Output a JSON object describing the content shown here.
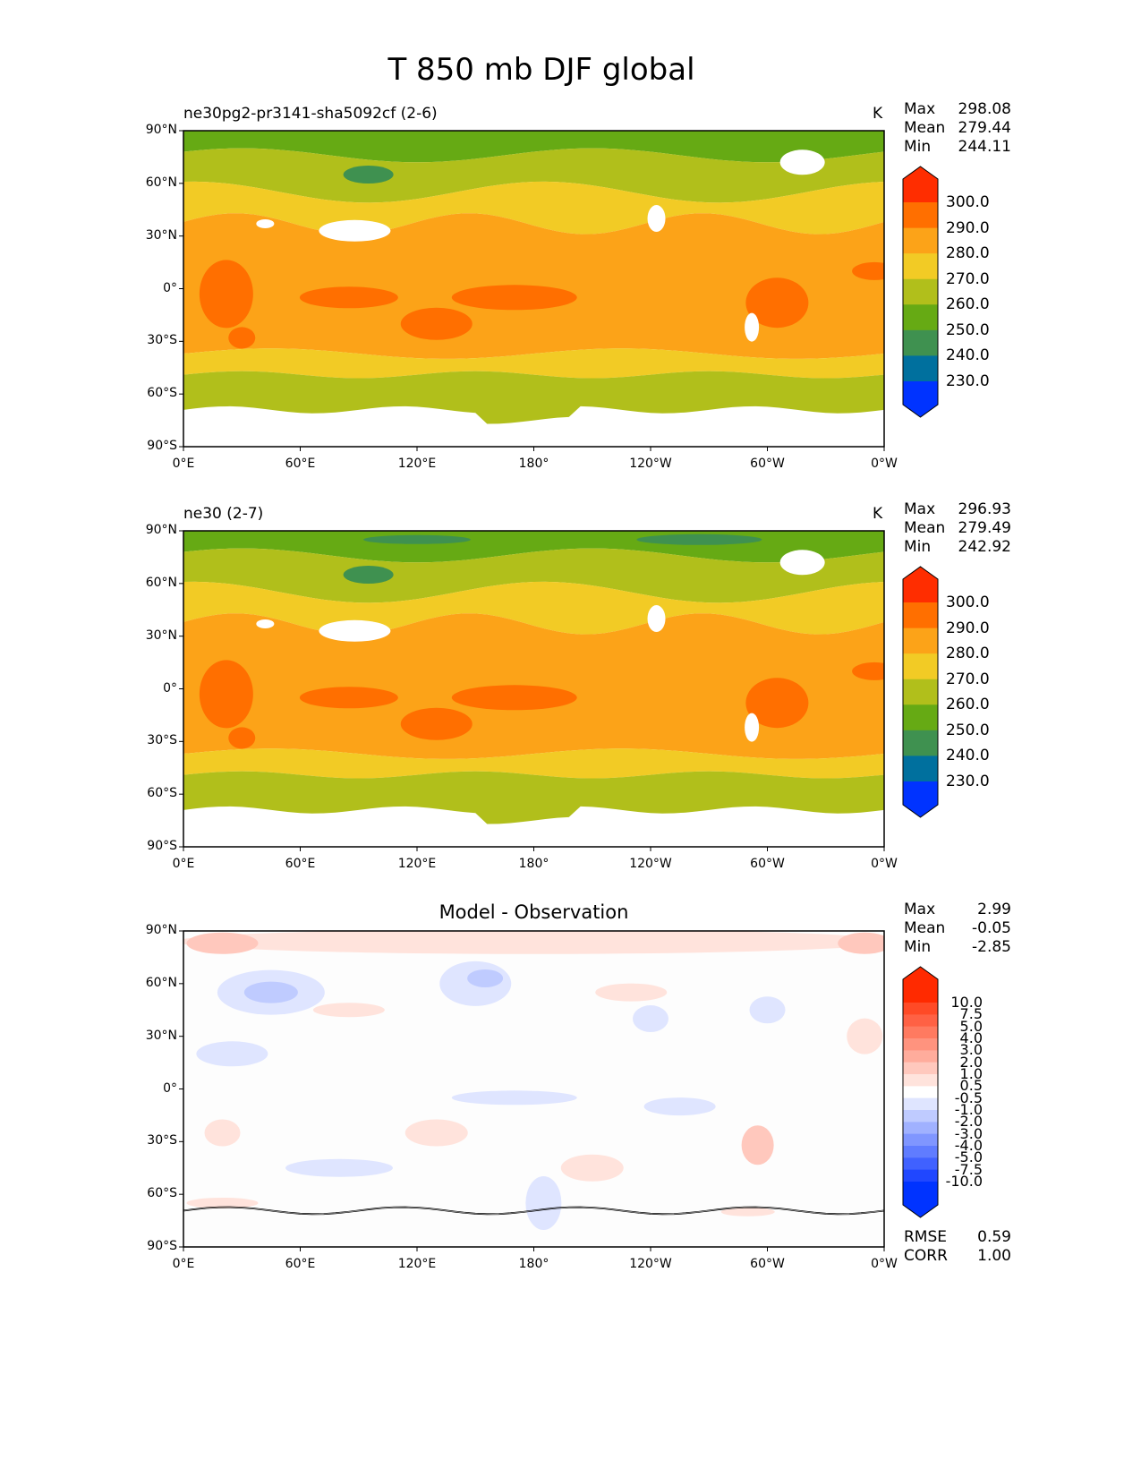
{
  "title": "T 850 mb DJF global",
  "chart_data": [
    {
      "type": "heatmap",
      "title": "ne30pg2-pr3141-sha5092cf (2-6)",
      "units": "K",
      "stats": {
        "max_label": "Max",
        "max": "298.08",
        "mean_label": "Mean",
        "mean": "279.44",
        "min_label": "Min",
        "min": "244.11"
      },
      "colorbar": {
        "levels": [
          "300.0",
          "290.0",
          "280.0",
          "270.0",
          "260.0",
          "250.0",
          "240.0",
          "230.0"
        ],
        "colors": [
          "#ff2d00",
          "#ff6f00",
          "#fca318",
          "#f2cb25",
          "#b1bf1b",
          "#66aa14",
          "#3f9150",
          "#00709e",
          "#0033ff"
        ]
      },
      "xticks": [
        "0°E",
        "60°E",
        "120°E",
        "180°",
        "120°W",
        "60°W",
        "0°W"
      ],
      "yticks": [
        "90°N",
        "60°N",
        "30°N",
        "0°",
        "30°S",
        "60°S",
        "90°S"
      ],
      "xlim": [
        0,
        360
      ],
      "ylim": [
        -90,
        90
      ]
    },
    {
      "type": "heatmap",
      "title": "ne30 (2-7)",
      "units": "K",
      "stats": {
        "max_label": "Max",
        "max": "296.93",
        "mean_label": "Mean",
        "mean": "279.49",
        "min_label": "Min",
        "min": "242.92"
      },
      "colorbar": {
        "levels": [
          "300.0",
          "290.0",
          "280.0",
          "270.0",
          "260.0",
          "250.0",
          "240.0",
          "230.0"
        ],
        "colors": [
          "#ff2d00",
          "#ff6f00",
          "#fca318",
          "#f2cb25",
          "#b1bf1b",
          "#66aa14",
          "#3f9150",
          "#00709e",
          "#0033ff"
        ]
      },
      "xticks": [
        "0°E",
        "60°E",
        "120°E",
        "180°",
        "120°W",
        "60°W",
        "0°W"
      ],
      "yticks": [
        "90°N",
        "60°N",
        "30°N",
        "0°",
        "30°S",
        "60°S",
        "90°S"
      ],
      "xlim": [
        0,
        360
      ],
      "ylim": [
        -90,
        90
      ]
    },
    {
      "type": "heatmap",
      "title": "Model - Observation",
      "units": "",
      "stats": {
        "max_label": "Max",
        "max": "2.99",
        "mean_label": "Mean",
        "mean": "-0.05",
        "min_label": "Min",
        "min": "-2.85",
        "rmse_label": "RMSE",
        "rmse": "0.59",
        "corr_label": "CORR",
        "corr": "1.00"
      },
      "colorbar": {
        "levels": [
          "10.0",
          "7.5",
          "5.0",
          "4.0",
          "3.0",
          "2.0",
          "1.0",
          "0.5",
          "-0.5",
          "-1.0",
          "-2.0",
          "-3.0",
          "-4.0",
          "-5.0",
          "-7.5",
          "-10.0"
        ],
        "colors": [
          "#ff2a00",
          "#ff4a26",
          "#ff6144",
          "#ff7a60",
          "#ff937e",
          "#ffac9c",
          "#ffc8bd",
          "#ffe3dc",
          "#ffffff",
          "#dfe5ff",
          "#bfcbff",
          "#a0b1ff",
          "#8096ff",
          "#607cff",
          "#4061ff",
          "#2047ff",
          "#0033ff"
        ]
      },
      "xticks": [
        "0°E",
        "60°E",
        "120°E",
        "180°",
        "120°W",
        "60°W",
        "0°W"
      ],
      "yticks": [
        "90°N",
        "60°N",
        "30°N",
        "0°",
        "30°S",
        "60°S",
        "90°S"
      ],
      "xlim": [
        0,
        360
      ],
      "ylim": [
        -90,
        90
      ]
    }
  ]
}
